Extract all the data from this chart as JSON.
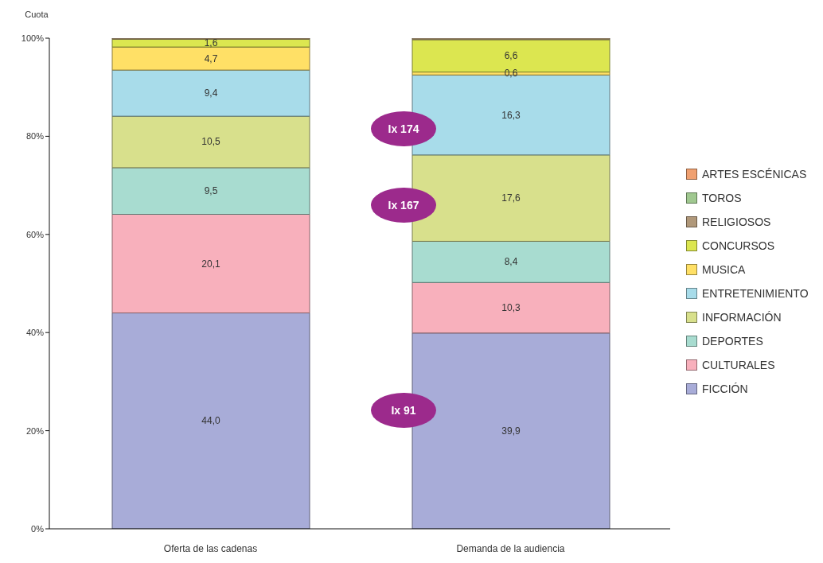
{
  "chart_data": {
    "type": "bar",
    "stacked": true,
    "ylabel": "Cuota",
    "categories": [
      "Oferta de las cadenas",
      "Demanda de la audiencia"
    ],
    "ylim": [
      0,
      100
    ],
    "yticks": [
      {
        "value": 0,
        "label": "0%"
      },
      {
        "value": 20,
        "label": "20%"
      },
      {
        "value": 40,
        "label": "40%"
      },
      {
        "value": 60,
        "label": "60%"
      },
      {
        "value": 80,
        "label": "80%"
      },
      {
        "value": 100,
        "label": "100%"
      }
    ],
    "grid": false,
    "legend": "right",
    "series": [
      {
        "name": "FICCIÓN",
        "color": "#a8acd8",
        "values": [
          44.0,
          39.9
        ],
        "value_labels": [
          "44,0",
          "39,9"
        ]
      },
      {
        "name": "CULTURALES",
        "color": "#f8b0bc",
        "values": [
          20.1,
          10.3
        ],
        "value_labels": [
          "20,1",
          "10,3"
        ]
      },
      {
        "name": "DEPORTES",
        "color": "#a8dcd0",
        "values": [
          9.5,
          8.4
        ],
        "value_labels": [
          "9,5",
          "8,4"
        ]
      },
      {
        "name": "INFORMACIÓN",
        "color": "#d8e08c",
        "values": [
          10.5,
          17.6
        ],
        "value_labels": [
          "10,5",
          "17,6"
        ]
      },
      {
        "name": "ENTRETENIMIENTO",
        "color": "#a8dcea",
        "values": [
          9.4,
          16.3
        ],
        "value_labels": [
          "9,4",
          "16,3"
        ]
      },
      {
        "name": "MUSICA",
        "color": "#ffe066",
        "values": [
          4.7,
          0.6
        ],
        "value_labels": [
          "4,7",
          "0,6"
        ]
      },
      {
        "name": "CONCURSOS",
        "color": "#dce650",
        "values": [
          1.6,
          6.6
        ],
        "value_labels": [
          "1,6",
          "6,6"
        ]
      },
      {
        "name": "RELIGIOSOS",
        "color": "#b0987a",
        "values": [
          0.2,
          0.3
        ],
        "value_labels": [
          null,
          null
        ]
      },
      {
        "name": "TOROS",
        "color": "#a0c890",
        "values": [
          null,
          null
        ]
      },
      {
        "name": "ARTES ESCÉNICAS",
        "color": "#f0a070",
        "values": [
          null,
          null
        ]
      }
    ],
    "annotations": [
      "Ix 174",
      "Ix 167",
      "Ix 91"
    ]
  }
}
